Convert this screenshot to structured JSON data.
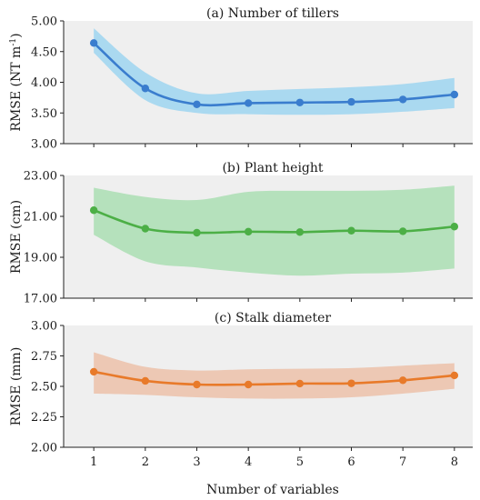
{
  "chart_data": [
    {
      "type": "line",
      "title": "(a) Number of tillers",
      "ylabel": "RMSE (NT m",
      "ylabel_sup": "-1",
      "ylabel_close": ")",
      "x": [
        1,
        2,
        3,
        4,
        5,
        6,
        7,
        8
      ],
      "values": [
        4.64,
        3.9,
        3.64,
        3.66,
        3.67,
        3.68,
        3.72,
        3.8
      ],
      "band_upper": [
        4.88,
        4.16,
        3.82,
        3.86,
        3.89,
        3.92,
        3.97,
        4.07
      ],
      "band_lower": [
        4.48,
        3.71,
        3.5,
        3.48,
        3.47,
        3.48,
        3.52,
        3.58
      ],
      "ylim": [
        3.0,
        5.0
      ],
      "yticks": [
        "3.00",
        "3.50",
        "4.00",
        "4.50",
        "5.00"
      ],
      "line_color": "#3a7dce",
      "band_color": "#8fd0f0",
      "grid": false
    },
    {
      "type": "line",
      "title": "(b) Plant height",
      "ylabel": "RMSE (cm)",
      "x": [
        1,
        2,
        3,
        4,
        5,
        6,
        7,
        8
      ],
      "values": [
        21.3,
        20.4,
        20.2,
        20.25,
        20.23,
        20.3,
        20.27,
        20.5
      ],
      "band_upper": [
        22.4,
        21.95,
        21.8,
        22.2,
        22.25,
        22.25,
        22.3,
        22.5
      ],
      "band_lower": [
        20.1,
        18.8,
        18.5,
        18.25,
        18.1,
        18.2,
        18.25,
        18.45
      ],
      "ylim": [
        17.0,
        23.0
      ],
      "yticks": [
        "17.00",
        "19.00",
        "21.00",
        "23.00"
      ],
      "line_color": "#4caf46",
      "band_color": "#9edba8",
      "grid": false
    },
    {
      "type": "line",
      "title": "(c) Stalk diameter",
      "ylabel": "RMSE (mm)",
      "x": [
        1,
        2,
        3,
        4,
        5,
        6,
        7,
        8
      ],
      "values": [
        2.62,
        2.545,
        2.515,
        2.515,
        2.523,
        2.525,
        2.55,
        2.59
      ],
      "band_upper": [
        2.78,
        2.66,
        2.63,
        2.64,
        2.645,
        2.65,
        2.67,
        2.69
      ],
      "band_lower": [
        2.44,
        2.43,
        2.41,
        2.4,
        2.4,
        2.41,
        2.44,
        2.48
      ],
      "ylim": [
        2.0,
        3.0
      ],
      "yticks": [
        "2.00",
        "2.25",
        "2.50",
        "2.75",
        "3.00"
      ],
      "line_color": "#e87a2a",
      "band_color": "#ebb99c",
      "grid": false
    }
  ],
  "xaxis": {
    "label": "Number of variables",
    "ticks": [
      "1",
      "2",
      "3",
      "4",
      "5",
      "6",
      "7",
      "8"
    ]
  },
  "colors": {
    "panel_bg": "#efefef",
    "axis": "#222222"
  }
}
